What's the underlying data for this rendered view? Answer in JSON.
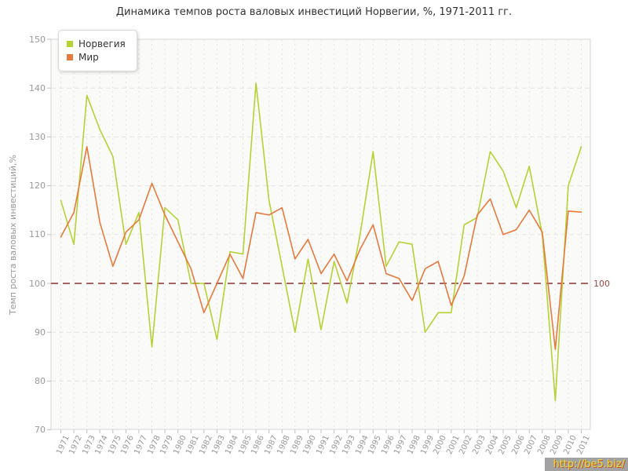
{
  "title": "Динамика темпов роста валовых инвестиций Норвегии, %, 1971-2011 гг.",
  "y_axis": {
    "label": "Темп роста валовых инвестиций,%",
    "min": 70,
    "max": 150,
    "step": 10
  },
  "reference_line": {
    "value": 100,
    "label": "100",
    "color": "#a86464"
  },
  "legend": {
    "items": [
      {
        "name": "Норвегия",
        "color": "#b5d234"
      },
      {
        "name": "Мир",
        "color": "#e8793d"
      }
    ]
  },
  "watermark": "http://be5.biz/",
  "colors": {
    "plot_bg": "#fafaf8",
    "plot_border": "#d6d6d4",
    "grid": "#e4e4e1",
    "tick": "#c0c0c0",
    "tick_text": "#999999",
    "title_text": "#333333"
  },
  "chart_data": {
    "type": "line",
    "title": "Динамика темпов роста валовых инвестиций Норвегии, %, 1971-2011 гг.",
    "xlabel": "",
    "ylabel": "Темп роста валовых инвестиций,%",
    "ylim": [
      70,
      150
    ],
    "grid": true,
    "legend_position": "top-left",
    "x": [
      1971,
      1972,
      1973,
      1974,
      1975,
      1976,
      1977,
      1978,
      1979,
      1980,
      1981,
      1982,
      1983,
      1984,
      1985,
      1986,
      1987,
      1988,
      1989,
      1990,
      1991,
      1992,
      1993,
      1994,
      1995,
      1996,
      1997,
      1998,
      1999,
      2000,
      2001,
      2002,
      2003,
      2004,
      2005,
      2006,
      2007,
      2008,
      2009,
      2010,
      2011
    ],
    "series": [
      {
        "name": "Норвегия",
        "color": "#b5d234",
        "values": [
          117,
          108,
          138.5,
          131.5,
          126,
          108,
          114.5,
          87,
          115.5,
          113,
          100,
          100,
          88.5,
          106.5,
          106,
          141,
          117,
          103.5,
          90,
          105,
          90.5,
          104.5,
          96,
          110,
          127,
          103.5,
          108.5,
          108,
          90,
          94,
          94,
          112,
          113.5,
          127,
          123,
          115.5,
          124,
          110,
          76,
          120,
          128
        ]
      },
      {
        "name": "Мир",
        "color": "#e8793d",
        "values": [
          109.5,
          114.5,
          128,
          112.5,
          103.5,
          110.5,
          113,
          120.5,
          114,
          108.5,
          103,
          94,
          100,
          106,
          101,
          114.5,
          114,
          115.5,
          105,
          109,
          102,
          106,
          100.5,
          107,
          112,
          102,
          101,
          96.5,
          103,
          104.5,
          95.5,
          101.5,
          114,
          117.3,
          110,
          111,
          115,
          110.5,
          86.5,
          114.8,
          114.6
        ]
      }
    ],
    "reference_line": 100
  }
}
